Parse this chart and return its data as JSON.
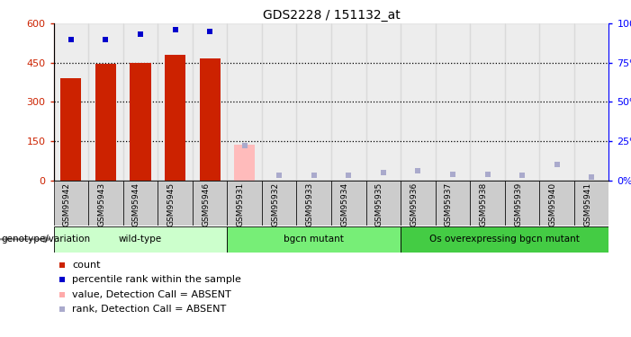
{
  "title": "GDS2228 / 151132_at",
  "samples": [
    "GSM95942",
    "GSM95943",
    "GSM95944",
    "GSM95945",
    "GSM95946",
    "GSM95931",
    "GSM95932",
    "GSM95933",
    "GSM95934",
    "GSM95935",
    "GSM95936",
    "GSM95937",
    "GSM95938",
    "GSM95939",
    "GSM95940",
    "GSM95941"
  ],
  "counts": [
    390,
    445,
    450,
    480,
    465,
    0,
    0,
    0,
    0,
    0,
    0,
    0,
    0,
    0,
    0,
    0
  ],
  "percentile_ranks": [
    90,
    90,
    93,
    96,
    95,
    null,
    null,
    null,
    null,
    null,
    null,
    null,
    null,
    null,
    null,
    null
  ],
  "absent_values": [
    null,
    null,
    null,
    null,
    null,
    135,
    3,
    3,
    3,
    3,
    3,
    3,
    3,
    3,
    3,
    3
  ],
  "absent_ranks": [
    null,
    null,
    null,
    null,
    null,
    22,
    3,
    3,
    3,
    5,
    6,
    4,
    4,
    3,
    10,
    2
  ],
  "present": [
    true,
    true,
    true,
    true,
    true,
    false,
    false,
    false,
    false,
    false,
    false,
    false,
    false,
    false,
    false,
    false
  ],
  "groups": [
    {
      "label": "wild-type",
      "start": 0,
      "end": 5,
      "color": "#ccffcc"
    },
    {
      "label": "bgcn mutant",
      "start": 5,
      "end": 10,
      "color": "#77ee77"
    },
    {
      "label": "Os overexpressing bgcn mutant",
      "start": 10,
      "end": 16,
      "color": "#44cc44"
    }
  ],
  "ylim_left": [
    0,
    600
  ],
  "ylim_right": [
    0,
    100
  ],
  "yticks_left": [
    0,
    150,
    300,
    450,
    600
  ],
  "yticks_right": [
    0,
    25,
    50,
    75,
    100
  ],
  "bar_color_present": "#cc2200",
  "bar_color_absent": "#ffbbbb",
  "dot_color_present": "#0000cc",
  "dot_color_absent": "#aaaacc",
  "sample_bg": "#cccccc"
}
